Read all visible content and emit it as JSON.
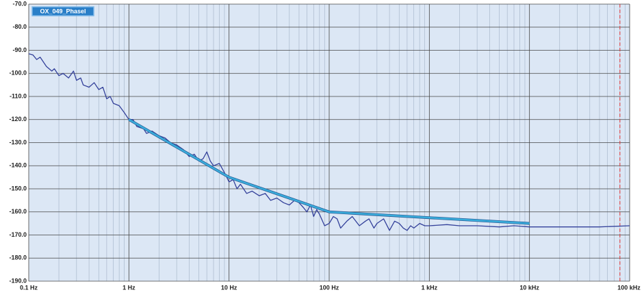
{
  "chart_data": {
    "type": "line",
    "xscale": "log",
    "xlim": [
      0.1,
      100000
    ],
    "ylim": [
      -190,
      -70
    ],
    "xticks": [
      {
        "value": 0.1,
        "label": "0.1 Hz"
      },
      {
        "value": 1,
        "label": "1 Hz"
      },
      {
        "value": 10,
        "label": "10 Hz"
      },
      {
        "value": 100,
        "label": "100 Hz"
      },
      {
        "value": 1000,
        "label": "1 kHz"
      },
      {
        "value": 10000,
        "label": "10 kHz"
      },
      {
        "value": 100000,
        "label": "100 kHz"
      }
    ],
    "yticks": [
      {
        "value": -70,
        "label": "-70.0"
      },
      {
        "value": -80,
        "label": "-80.0"
      },
      {
        "value": -90,
        "label": "-90.0"
      },
      {
        "value": -100,
        "label": "-100.0"
      },
      {
        "value": -110,
        "label": "-110.0"
      },
      {
        "value": -120,
        "label": "-120.0"
      },
      {
        "value": -130,
        "label": "-130.0"
      },
      {
        "value": -140,
        "label": "-140.0"
      },
      {
        "value": -150,
        "label": "-150.0"
      },
      {
        "value": -160,
        "label": "-160.0"
      },
      {
        "value": -170,
        "label": "-170.0"
      },
      {
        "value": -180,
        "label": "-180.0"
      },
      {
        "value": -190,
        "label": "-190.0"
      }
    ],
    "grid": true,
    "minor_grid": true,
    "vline_x": 80000,
    "vline_color": "#e03030",
    "series": [
      {
        "name": "OX_049_Phasel",
        "color": "#33409a",
        "x": [
          0.1,
          0.11,
          0.12,
          0.13,
          0.15,
          0.17,
          0.18,
          0.2,
          0.22,
          0.25,
          0.28,
          0.3,
          0.33,
          0.35,
          0.4,
          0.45,
          0.5,
          0.55,
          0.6,
          0.65,
          0.7,
          0.8,
          0.9,
          1,
          1.1,
          1.2,
          1.4,
          1.5,
          1.7,
          2,
          2.3,
          2.6,
          3,
          3.5,
          4,
          4.5,
          5,
          5.5,
          6,
          6.5,
          7,
          8,
          9,
          10,
          11,
          12,
          13,
          15,
          17,
          20,
          23,
          26,
          30,
          35,
          40,
          45,
          50,
          55,
          60,
          65,
          70,
          75,
          80,
          90,
          100,
          110,
          120,
          130,
          150,
          170,
          200,
          230,
          250,
          280,
          300,
          350,
          400,
          450,
          500,
          550,
          600,
          650,
          700,
          800,
          900,
          1000,
          1500,
          2000,
          3000,
          5000,
          7000,
          10000,
          20000,
          50000,
          100000
        ],
        "values": [
          -91.5,
          -92,
          -94,
          -93,
          -97,
          -99,
          -98,
          -101,
          -100,
          -102,
          -99,
          -103,
          -102,
          -105,
          -106,
          -104,
          -107,
          -106,
          -111,
          -110,
          -113,
          -114,
          -117,
          -120,
          -120,
          -123,
          -124,
          -126,
          -125,
          -127,
          -128,
          -130,
          -131,
          -133,
          -136,
          -135,
          -138,
          -137,
          -134,
          -138,
          -140,
          -139,
          -143,
          -147,
          -146,
          -150,
          -148,
          -152,
          -151,
          -153,
          -152,
          -155,
          -154,
          -156,
          -157,
          -155,
          -156,
          -158,
          -160,
          -157,
          -162,
          -159,
          -161,
          -166,
          -165,
          -162,
          -163,
          -167,
          -164,
          -162,
          -166,
          -164,
          -163,
          -167,
          -165,
          -163,
          -168,
          -164,
          -165,
          -167,
          -168,
          -166,
          -167,
          -165,
          -166,
          -166,
          -165.5,
          -166,
          -166,
          -166.5,
          -166,
          -166.5,
          -166.5,
          -166.5,
          -166
        ]
      },
      {
        "color": "#3aaedc",
        "x": [
          1,
          10,
          100,
          10000
        ],
        "values": [
          -120,
          -145,
          -160,
          -165
        ]
      }
    ]
  }
}
